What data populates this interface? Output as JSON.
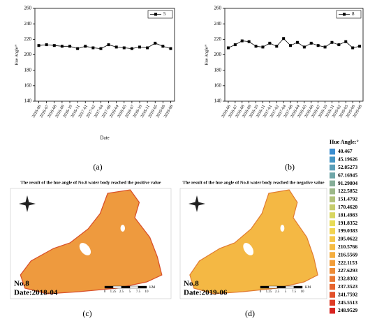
{
  "chart_data": [
    {
      "type": "line",
      "legend_corner": "upper right",
      "xlabel": "Date",
      "ylabel": "Hue Angle/°",
      "categories": [
        "2016-06",
        "2016-07",
        "2016-08",
        "2016-09",
        "2016-10",
        "2016-11",
        "2017-01",
        "2017-02",
        "2017-04",
        "2017-08",
        "2018-04",
        "2018-05",
        "2018-07",
        "2018-10",
        "2018-11",
        "2019-05",
        "2019-06",
        "2019-08"
      ],
      "series": [
        {
          "name": "5",
          "color": "#000000",
          "values": [
            212,
            213,
            212,
            211,
            211,
            208,
            211,
            209,
            208,
            213,
            210,
            209,
            208,
            210,
            209,
            215,
            211,
            208
          ]
        }
      ],
      "ylim": [
        140,
        260
      ],
      "yticks": [
        140,
        160,
        180,
        200,
        220,
        240,
        260
      ]
    },
    {
      "type": "line",
      "legend_corner": "upper right",
      "ylabel": "Hue Angle/°",
      "categories": [
        "2016-06",
        "2016-07",
        "2016-08",
        "2016-09",
        "2016-10",
        "2016-11",
        "2017-01",
        "2017-02",
        "2017-04",
        "2017-08",
        "2018-04",
        "2018-05",
        "2018-06",
        "2018-07",
        "2018-10",
        "2018-11",
        "2019-02",
        "2019-05",
        "2019-06",
        "2019-08"
      ],
      "series": [
        {
          "name": "8",
          "color": "#000000",
          "values": [
            209,
            213,
            218,
            217,
            211,
            210,
            215,
            211,
            221,
            212,
            216,
            210,
            215,
            212,
            210,
            216,
            213,
            217,
            209,
            211
          ]
        }
      ],
      "ylim": [
        140,
        260
      ],
      "yticks": [
        140,
        160,
        180,
        200,
        220,
        240,
        260
      ]
    }
  ],
  "captions": [
    "(a)",
    "(b)",
    "(c)",
    "(d)"
  ],
  "maps": [
    {
      "title": "The result of the hue angle of No.8 water body reached the positive value",
      "label": "No.8",
      "date": "Date:2018-04",
      "scale_labels": [
        "0",
        "1.25",
        "2.5",
        "5",
        "7.5",
        "10"
      ],
      "unit": "KM"
    },
    {
      "title": "The result of the hue angle of No.8 water body reached the negative value",
      "label": "No.8",
      "date": "Date:2019-06",
      "scale_labels": [
        "0",
        "1.25",
        "2.5",
        "5",
        "7.5",
        "10"
      ],
      "unit": "KM"
    }
  ],
  "legend": {
    "title": "Hue Angle:°",
    "entries": [
      "40.467",
      "45.19626",
      "52.85273",
      "67.16945",
      "91.29804",
      "122.5852",
      "151.4792",
      "170.4620",
      "181.4983",
      "191.8352",
      "199.0383",
      "205.0622",
      "210.5766",
      "216.5569",
      "222.1153",
      "227.6293",
      "232.8302",
      "237.3523",
      "241.7592",
      "245.5513",
      "248.9529"
    ],
    "colors": [
      "#3b8ed0",
      "#4596c4",
      "#5a9eb8",
      "#6fa6a8",
      "#86ae98",
      "#9cb888",
      "#b2c27a",
      "#c6cc6c",
      "#d8d660",
      "#e8dc58",
      "#f2d450",
      "#f6c84a",
      "#f6bc44",
      "#f4ae40",
      "#f29e3a",
      "#ee8c36",
      "#ea7832",
      "#e6642e",
      "#e2502a",
      "#de3c26",
      "#d82420"
    ]
  }
}
